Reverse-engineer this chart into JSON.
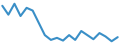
{
  "x": [
    0,
    1,
    2,
    3,
    4,
    5,
    6,
    7,
    8,
    9,
    10,
    11,
    12,
    13,
    14,
    15,
    16,
    17,
    18,
    19
  ],
  "y": [
    6.5,
    5.2,
    6.8,
    5.0,
    6.2,
    5.8,
    4.0,
    2.2,
    1.5,
    1.8,
    1.4,
    2.2,
    1.5,
    2.8,
    2.2,
    1.6,
    2.5,
    2.0,
    1.3,
    1.9
  ],
  "line_color": "#3a8fc7",
  "linewidth": 1.5,
  "bg_color": "#ffffff"
}
